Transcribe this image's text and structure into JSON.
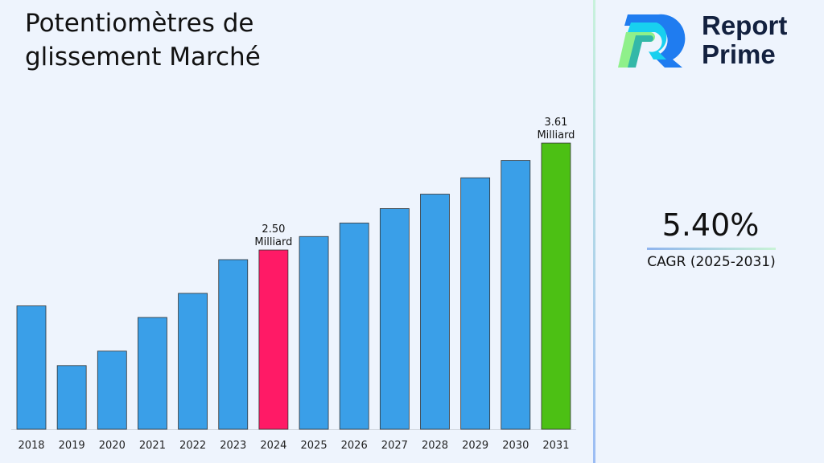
{
  "chart_data": {
    "type": "bar",
    "title": "Potentiomètres de glissement Marché",
    "categories": [
      "2018",
      "2019",
      "2020",
      "2021",
      "2022",
      "2023",
      "2024",
      "2025",
      "2026",
      "2027",
      "2028",
      "2029",
      "2030",
      "2031"
    ],
    "values": [
      1.92,
      1.3,
      1.45,
      1.8,
      2.05,
      2.4,
      2.5,
      2.64,
      2.78,
      2.93,
      3.08,
      3.25,
      3.43,
      3.61
    ],
    "unit": "Milliard",
    "data_labels": {
      "2024": "2.50\nMilliard",
      "2031": "3.61\nMilliard"
    },
    "colors": {
      "default": "#3a9fe8",
      "2024": "#ff1a66",
      "2031": "#4cc014"
    },
    "grid": false,
    "legend": "none"
  },
  "brand": {
    "name_line1": "Report",
    "name_line2": "Prime"
  },
  "cagr": {
    "value": "5.40%",
    "label": "CAGR (2025-2031)"
  }
}
